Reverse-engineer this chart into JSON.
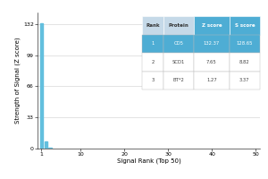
{
  "bar_ranks": [
    1,
    2,
    3
  ],
  "bar_values": [
    132.37,
    7.65,
    1.27
  ],
  "bar_color": "#63bfde",
  "bar_width": 0.7,
  "xlim": [
    0.1,
    51
  ],
  "ylim": [
    0,
    144
  ],
  "yticks": [
    0,
    33,
    66,
    99,
    132
  ],
  "xticks": [
    1,
    10,
    20,
    30,
    40,
    50
  ],
  "xlabel": "Signal Rank (Top 50)",
  "ylabel": "Strength of Signal (Z score)",
  "table_headers": [
    "Rank",
    "Protein",
    "Z score",
    "S score"
  ],
  "table_rows": [
    [
      "1",
      "CD5",
      "132.37",
      "128.65"
    ],
    [
      "2",
      "SCD1",
      "7.65",
      "8.82"
    ],
    [
      "3",
      "BT*2",
      "1.27",
      "3.37"
    ]
  ],
  "header_bg_cols": [
    "#c5d9e8",
    "#c5d9e8",
    "#4eadd4",
    "#4eadd4"
  ],
  "header_text_cols": [
    "#333333",
    "#333333",
    "#ffffff",
    "#ffffff"
  ],
  "row1_bg": "#4eadd4",
  "row1_text": "#ffffff",
  "row_other_bg": "#ffffff",
  "row_other_text": "#444444",
  "row_line_color": "#bbbbbb",
  "grid_color": "#d8d8d8",
  "background_color": "#ffffff",
  "tick_font_size": 4.5,
  "label_font_size": 5.0,
  "table_font_size": 3.8,
  "table_header_font_size": 4.0
}
